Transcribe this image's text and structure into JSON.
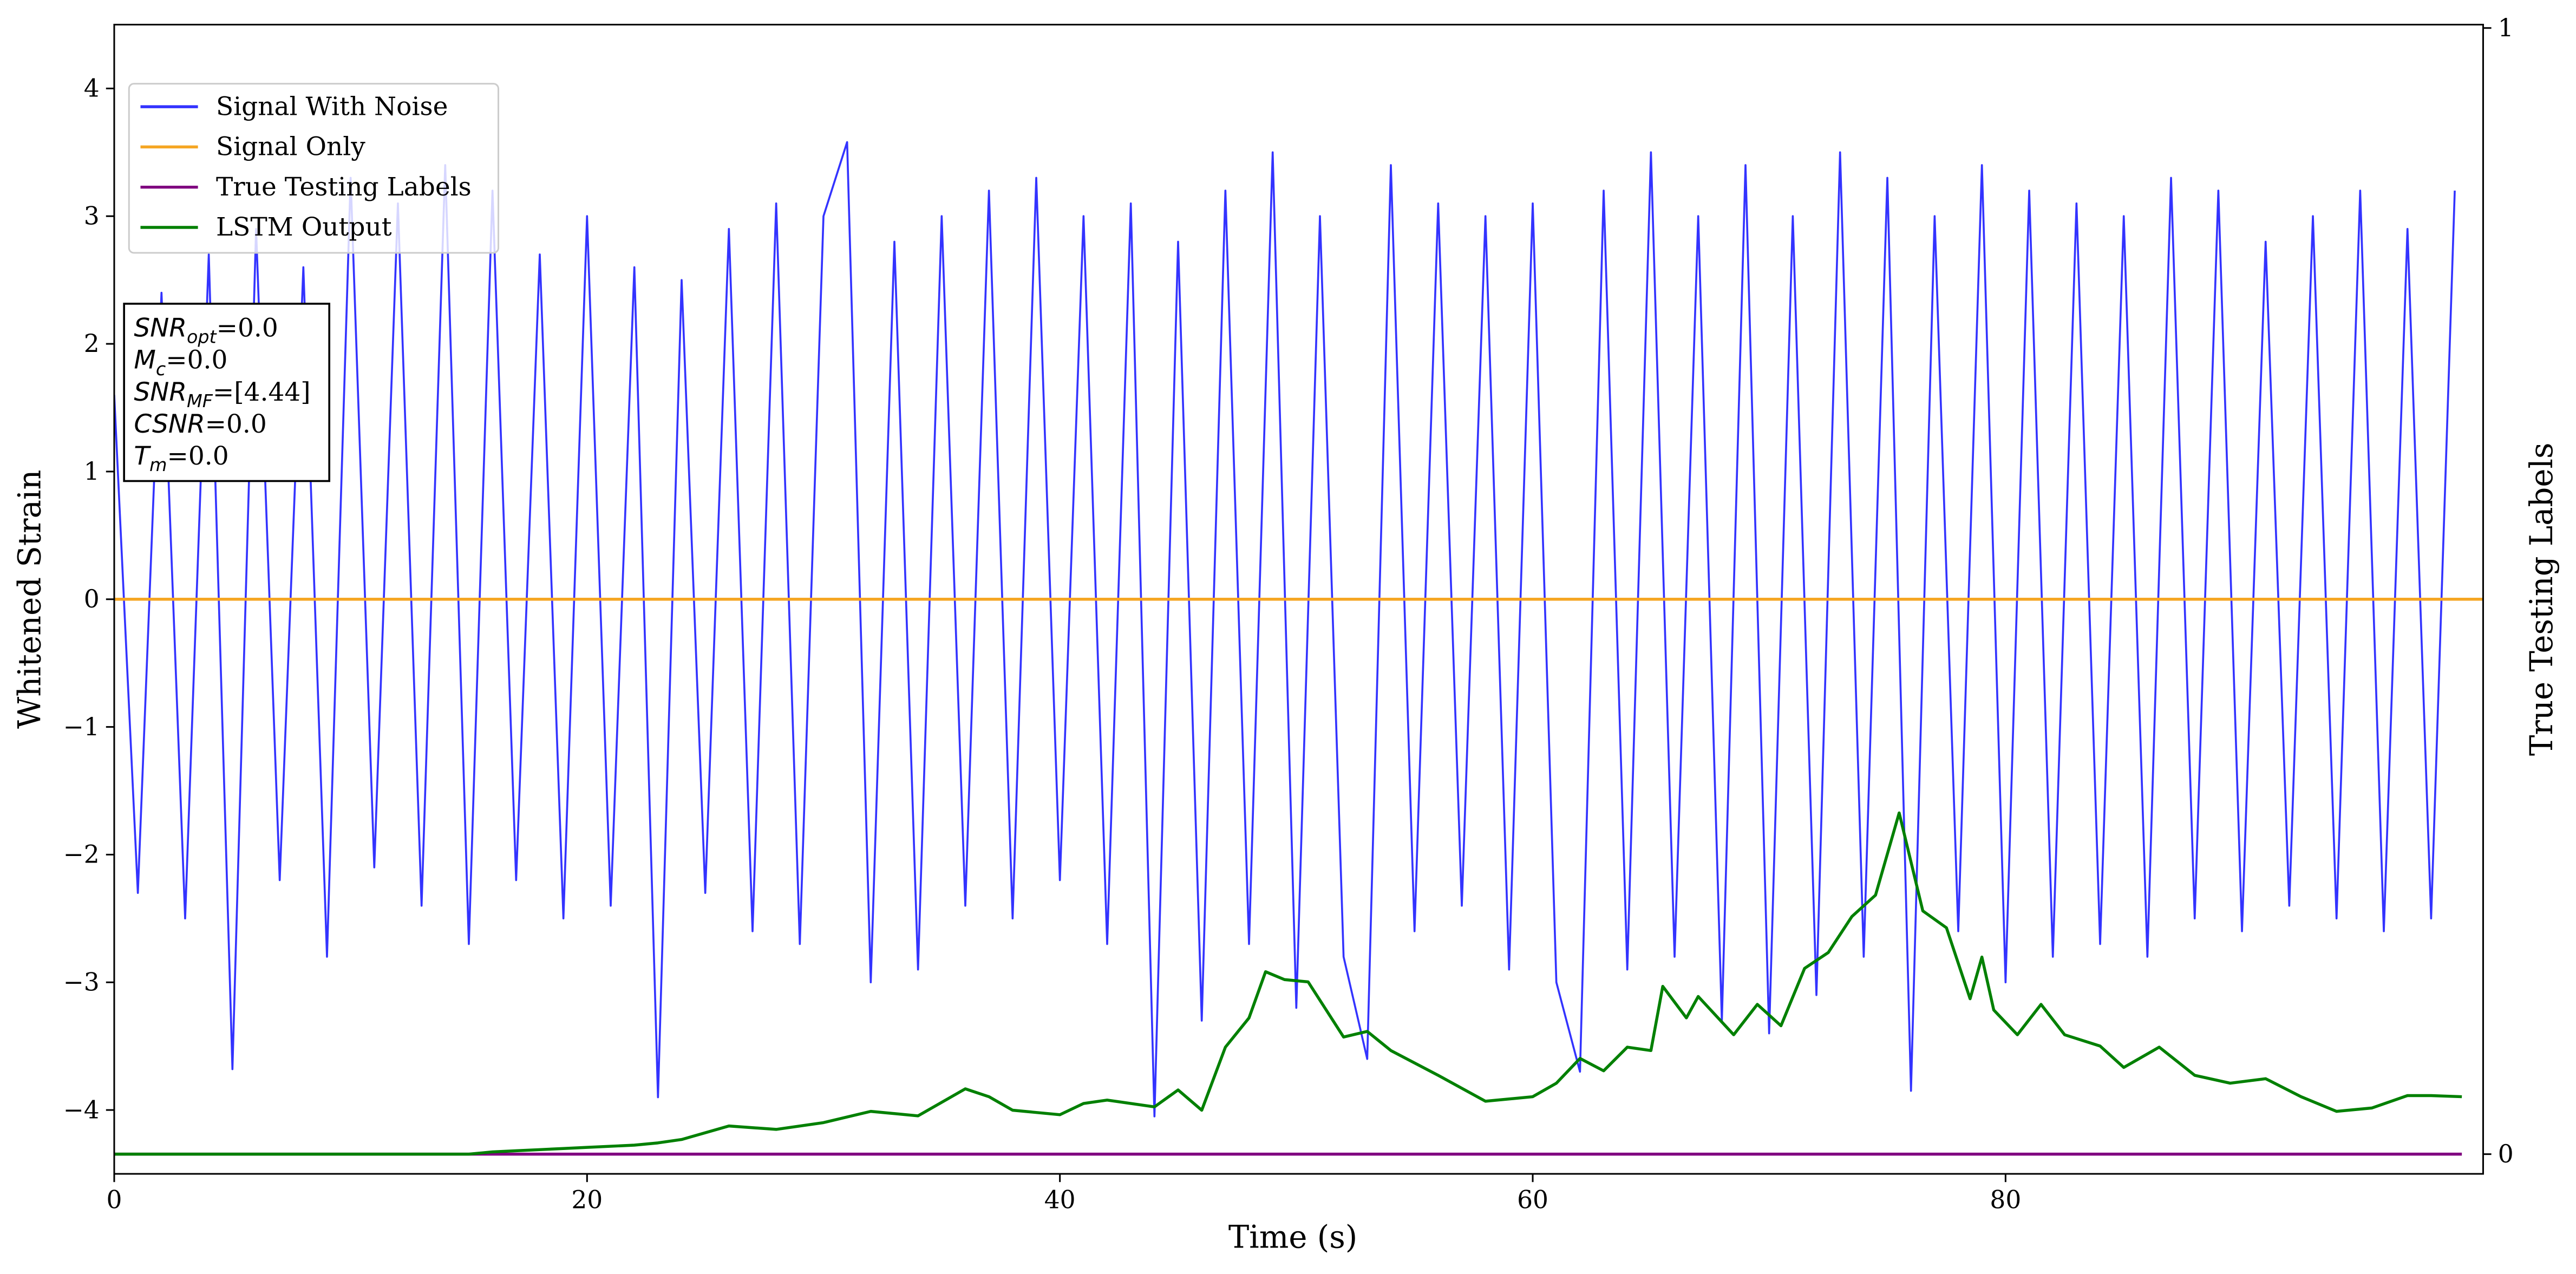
{
  "chart_data": {
    "type": "line",
    "xlabel": "Time (s)",
    "ylabel": "Whitened Strain",
    "y2label": "True Testing Labels",
    "xlim": [
      0,
      100.2
    ],
    "ylim": [
      -4.5,
      4.5
    ],
    "y2lim": [
      -0.0175,
      1.003
    ],
    "xticks": [
      0,
      20,
      40,
      60,
      80
    ],
    "yticks": [
      -4,
      -3,
      -2,
      -1,
      0,
      1,
      2,
      3,
      4
    ],
    "y2ticks": [
      0,
      1
    ],
    "legend": "upper left",
    "annotation": [
      {
        "main": "SNR",
        "sub": "opt",
        "rest": "=0.0"
      },
      {
        "main": "M",
        "sub": "c",
        "rest": "=0.0"
      },
      {
        "main": "SNR",
        "sub": "MF",
        "rest": "=[4.44]"
      },
      {
        "main": "CSNR",
        "sub": null,
        "rest": "=0.0"
      },
      {
        "main": "T",
        "sub": "m",
        "rest": "=0.0"
      }
    ],
    "series": [
      {
        "name": "Signal With Noise",
        "color": "#3333ff",
        "axis": "y",
        "x": [
          0,
          1,
          2,
          3,
          4,
          5,
          6,
          7,
          8,
          9,
          10,
          11,
          12,
          13,
          14,
          15,
          16,
          17,
          18,
          19,
          20,
          21,
          22,
          23,
          24,
          25,
          26,
          27,
          28,
          29,
          30,
          31,
          32,
          33,
          34,
          35,
          36,
          37,
          38,
          39,
          40,
          41,
          42,
          43,
          44,
          45,
          46,
          47,
          48,
          49,
          50,
          51,
          52,
          53,
          54,
          55,
          56,
          57,
          58,
          59,
          60,
          61,
          62,
          63,
          64,
          65,
          66,
          67,
          68,
          69,
          70,
          71,
          72,
          73,
          74,
          75,
          76,
          77,
          78,
          79,
          80,
          81,
          82,
          83,
          84,
          85,
          86,
          87,
          88,
          89,
          90,
          91,
          92,
          93,
          94,
          95,
          96,
          97,
          98,
          99
        ],
        "values": [
          1.6,
          -2.3,
          2.4,
          -2.5,
          2.7,
          -3.68,
          2.9,
          -2.2,
          2.6,
          -2.8,
          3.3,
          -2.1,
          3.1,
          -2.4,
          3.4,
          -2.7,
          3.2,
          -2.2,
          2.7,
          -2.5,
          3.0,
          -2.4,
          2.6,
          -3.9,
          2.5,
          -2.3,
          2.9,
          -2.6,
          3.1,
          -2.7,
          3.0,
          3.58,
          -3.0,
          2.8,
          -2.9,
          3.0,
          -2.4,
          3.2,
          -2.5,
          3.3,
          -2.2,
          3.0,
          -2.7,
          3.1,
          -4.05,
          2.8,
          -3.3,
          3.2,
          -2.7,
          3.5,
          -3.2,
          3.0,
          -2.8,
          -3.6,
          3.4,
          -2.6,
          3.1,
          -2.4,
          3.0,
          -2.9,
          3.1,
          -3.0,
          -3.7,
          3.2,
          -2.9,
          3.5,
          -2.8,
          3.0,
          -3.3,
          3.4,
          -3.4,
          3.0,
          -3.1,
          3.5,
          -2.8,
          3.3,
          -3.85,
          3.0,
          -2.6,
          3.4,
          -3.0,
          3.2,
          -2.8,
          3.1,
          -2.7,
          3.0,
          -2.8,
          3.3,
          -2.5,
          3.2,
          -2.6,
          2.8,
          -2.4,
          3.0,
          -2.5,
          3.2,
          -2.6,
          2.9,
          -2.5,
          3.2
        ]
      },
      {
        "name": "Signal Only",
        "color": "#f5a623",
        "axis": "y",
        "x": [
          0,
          100.2
        ],
        "values": [
          0,
          0
        ]
      },
      {
        "name": "True Testing Labels",
        "color": "#800080",
        "axis": "y2",
        "x": [
          0,
          99.3
        ],
        "values": [
          0,
          0
        ]
      },
      {
        "name": "LSTM Output",
        "color": "#008000",
        "axis": "y2",
        "x": [
          0,
          15,
          16,
          17,
          18,
          19,
          20,
          22,
          23,
          24,
          25,
          26,
          28,
          30,
          32,
          34,
          36,
          37,
          38,
          40,
          41,
          42,
          44,
          45,
          46,
          47,
          48,
          48.7,
          49.5,
          50.5,
          52,
          53,
          54,
          56,
          58,
          60,
          61,
          62,
          63,
          64,
          65,
          65.5,
          66.5,
          67,
          68.5,
          69.5,
          70.5,
          71.5,
          72.5,
          73.5,
          74.5,
          75.5,
          76.5,
          77.5,
          78.5,
          79,
          79.5,
          80.5,
          81.5,
          82.5,
          84,
          85,
          86.5,
          88,
          89.5,
          91,
          92.5,
          94,
          95.5,
          97,
          98,
          99.3
        ],
        "values": [
          0,
          0,
          0.002,
          0.003,
          0.004,
          0.005,
          0.006,
          0.008,
          0.01,
          0.013,
          0.019,
          0.025,
          0.022,
          0.028,
          0.038,
          0.034,
          0.058,
          0.051,
          0.039,
          0.035,
          0.045,
          0.048,
          0.042,
          0.057,
          0.039,
          0.095,
          0.121,
          0.162,
          0.155,
          0.153,
          0.104,
          0.109,
          0.092,
          0.07,
          0.047,
          0.051,
          0.063,
          0.085,
          0.074,
          0.095,
          0.092,
          0.149,
          0.121,
          0.14,
          0.106,
          0.133,
          0.114,
          0.165,
          0.179,
          0.211,
          0.23,
          0.303,
          0.216,
          0.201,
          0.138,
          0.175,
          0.128,
          0.106,
          0.133,
          0.106,
          0.096,
          0.077,
          0.095,
          0.07,
          0.063,
          0.067,
          0.051,
          0.038,
          0.041,
          0.052,
          0.052,
          0.051
        ]
      }
    ]
  }
}
